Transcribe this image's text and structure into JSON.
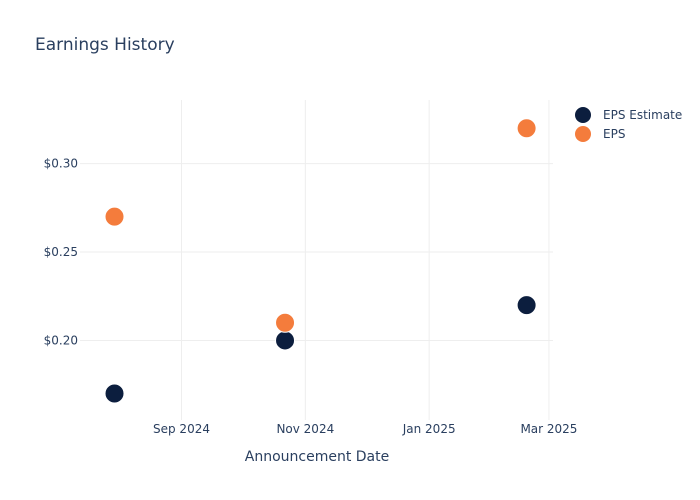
{
  "chart_data": {
    "type": "scatter",
    "title": "Earnings History",
    "xlabel": "Announcement Date",
    "ylabel": "",
    "x_ticks": [
      {
        "date": "2024-09-01",
        "label": "Sep 2024"
      },
      {
        "date": "2024-11-01",
        "label": "Nov 2024"
      },
      {
        "date": "2025-01-01",
        "label": "Jan 2025"
      },
      {
        "date": "2025-03-01",
        "label": "Mar 2025"
      }
    ],
    "y_ticks": [
      {
        "value": 0.2,
        "label": "$0.20"
      },
      {
        "value": 0.25,
        "label": "$0.25"
      },
      {
        "value": 0.3,
        "label": "$0.30"
      }
    ],
    "xlim": [
      "2024-07-13",
      "2025-03-03"
    ],
    "ylim": [
      0.155,
      0.336
    ],
    "grid": true,
    "legend": "top-right",
    "series": [
      {
        "name": "EPS Estimate",
        "color": "#0c1e3e",
        "points": [
          {
            "x": "2024-07-30",
            "y": 0.17
          },
          {
            "x": "2024-10-22",
            "y": 0.2
          },
          {
            "x": "2025-02-18",
            "y": 0.22
          }
        ]
      },
      {
        "name": "EPS",
        "color": "#f47c3c",
        "points": [
          {
            "x": "2024-07-30",
            "y": 0.27
          },
          {
            "x": "2024-10-22",
            "y": 0.21
          },
          {
            "x": "2025-02-18",
            "y": 0.32
          }
        ]
      }
    ]
  }
}
